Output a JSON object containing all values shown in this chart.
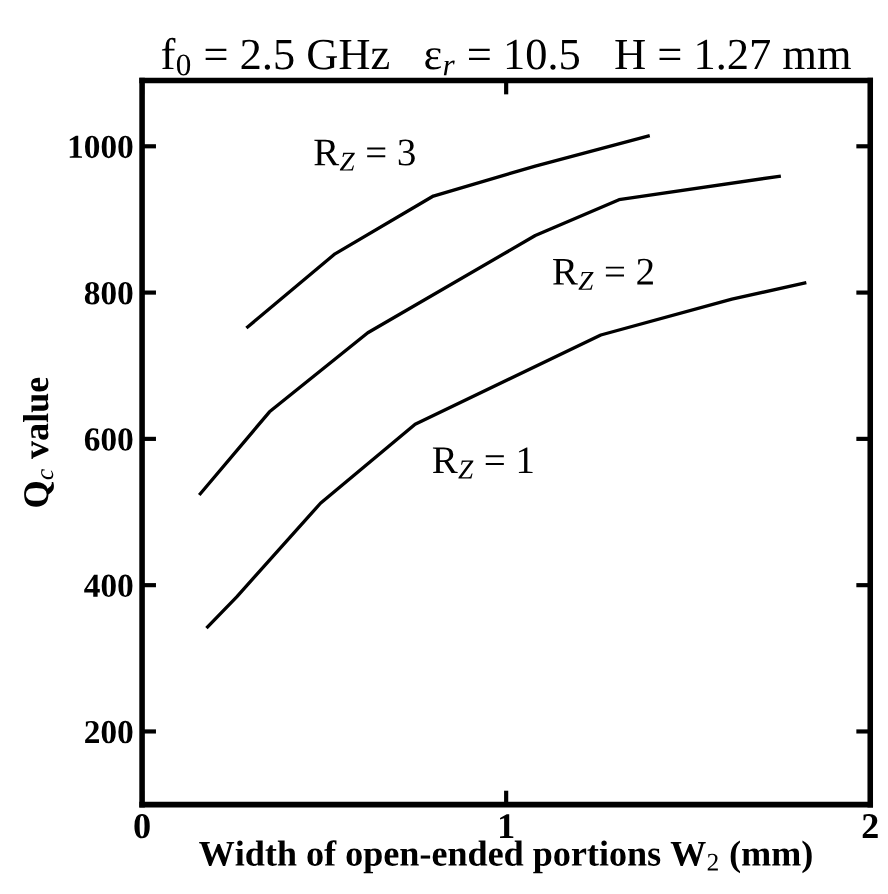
{
  "chart_data": {
    "type": "line",
    "title": "f$_{0}$ = 2.5 GHz   ε$_{r}$ = 10.5   H = 1.27 mm",
    "xlabel": "Width of open-ended portions W$_{2}$ (mm)",
    "ylabel": "Q$_{c}$ value",
    "xlim": [
      0,
      2
    ],
    "xticks": [
      0,
      1,
      2
    ],
    "ylim": [
      100,
      1090
    ],
    "yticks": [
      200,
      400,
      600,
      800,
      1000
    ],
    "grid": false,
    "legend": false,
    "marker": "none",
    "line_style": "solid",
    "series": [
      {
        "name": "R$_{Z}$ = 1",
        "color": "#000000",
        "x": [
          0.18,
          0.26,
          0.49,
          0.75,
          1.26,
          1.62,
          1.82
        ],
        "values": [
          343,
          384,
          512,
          620,
          742,
          791,
          813
        ]
      },
      {
        "name": "R$_{Z}$ = 2",
        "color": "#000000",
        "x": [
          0.16,
          0.35,
          0.62,
          1.08,
          1.31,
          1.75
        ],
        "values": [
          525,
          637,
          745,
          878,
          927,
          959
        ]
      },
      {
        "name": "R$_{Z}$ = 3",
        "color": "#000000",
        "x": [
          0.29,
          0.53,
          0.8,
          1.08,
          1.39
        ],
        "values": [
          753,
          853,
          932,
          973,
          1014
        ]
      }
    ]
  }
}
